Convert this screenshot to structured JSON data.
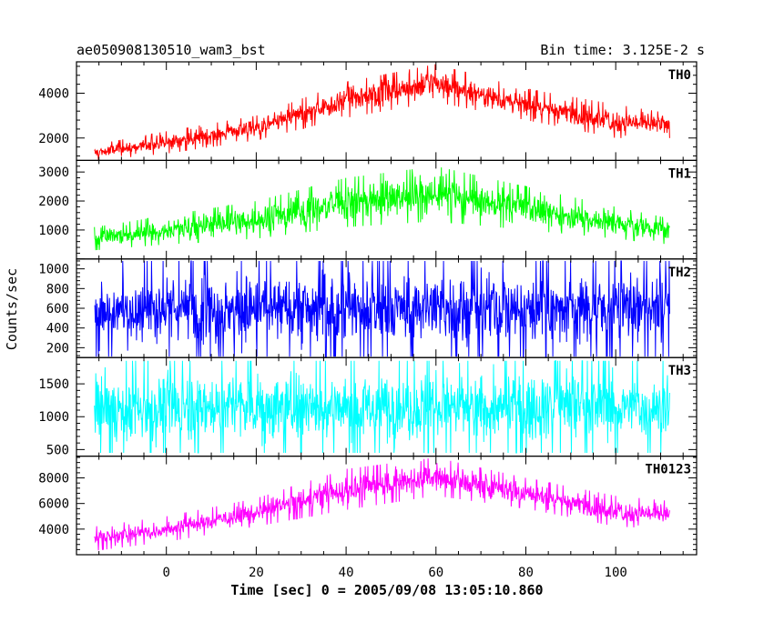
{
  "header": {
    "title": "ae050908130510_wam3_bst",
    "bin_time": "Bin time: 3.125E-2 s"
  },
  "chart_data": {
    "type": "line",
    "xlabel": "Time [sec] 0 = 2005/09/08 13:05:10.860",
    "ylabel": "Counts/sec",
    "xlim": [
      -20,
      118
    ],
    "x_start": -16,
    "x_end": 112,
    "bin_time_s": 0.03125,
    "x_ticks": [
      0,
      20,
      40,
      60,
      80,
      100
    ],
    "grid": false,
    "panels": [
      {
        "name": "TH0",
        "color": "#ff0000",
        "ylim": [
          1000,
          5400
        ],
        "y_ticks": [
          2000,
          4000
        ],
        "envelope": {
          "x": [
            -16,
            0,
            20,
            40,
            60,
            80,
            100,
            112
          ],
          "lo": [
            1000,
            1300,
            1900,
            2900,
            3600,
            2800,
            2000,
            2000
          ],
          "hi": [
            1700,
            2300,
            3000,
            4500,
            5300,
            4200,
            3500,
            3100
          ]
        }
      },
      {
        "name": "TH1",
        "color": "#00ff00",
        "ylim": [
          0,
          3400
        ],
        "y_ticks": [
          1000,
          2000,
          3000
        ],
        "envelope": {
          "x": [
            -16,
            0,
            20,
            40,
            60,
            80,
            100,
            112
          ],
          "lo": [
            300,
            500,
            700,
            1100,
            1300,
            1000,
            700,
            500
          ],
          "hi": [
            1100,
            1500,
            2000,
            2800,
            3200,
            2500,
            1800,
            1400
          ]
        }
      },
      {
        "name": "TH2",
        "color": "#0000ff",
        "ylim": [
          100,
          1100
        ],
        "y_ticks": [
          200,
          400,
          600,
          800,
          1000
        ],
        "envelope": {
          "x": [
            -16,
            112
          ],
          "lo": [
            110,
            110
          ],
          "hi": [
            1080,
            1080
          ]
        }
      },
      {
        "name": "TH3",
        "color": "#00ffff",
        "ylim": [
          400,
          1900
        ],
        "y_ticks": [
          500,
          1000,
          1500
        ],
        "envelope": {
          "x": [
            -16,
            112
          ],
          "lo": [
            450,
            450
          ],
          "hi": [
            1850,
            1850
          ]
        }
      },
      {
        "name": "TH0123",
        "color": "#ff00ff",
        "ylim": [
          2000,
          9700
        ],
        "y_ticks": [
          4000,
          6000,
          8000
        ],
        "envelope": {
          "x": [
            -16,
            0,
            20,
            40,
            60,
            80,
            100,
            112
          ],
          "lo": [
            2300,
            3000,
            4200,
            5500,
            6600,
            5600,
            4200,
            4000
          ],
          "hi": [
            4200,
            5000,
            6400,
            8700,
            9600,
            8000,
            6600,
            6200
          ]
        }
      }
    ]
  }
}
